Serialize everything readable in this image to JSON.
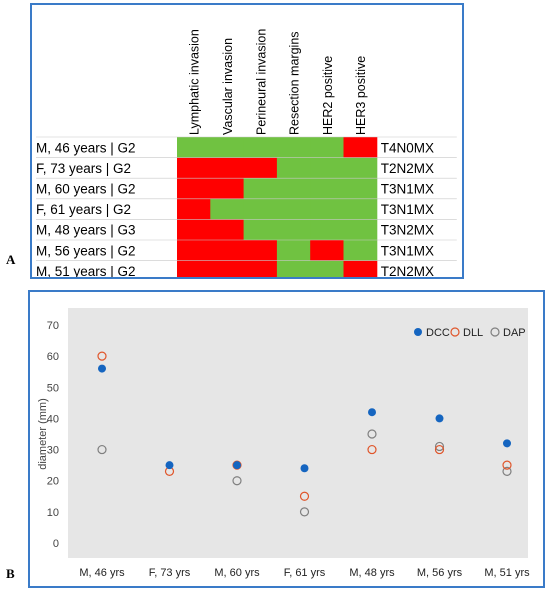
{
  "panel_labels": {
    "a": "A",
    "b": "B"
  },
  "colors": {
    "present": "#ff0000",
    "absent": "#70c241",
    "frame": "#3a7bc8",
    "plot_bg": "#e6e6e6",
    "dcc": "#1565c0",
    "dll": "#e0552a",
    "dap": "#7f7f7f"
  },
  "chart_data": [
    {
      "type": "heatmap",
      "columns": [
        "Lymphatic invasion",
        "Vascular invasion",
        "Perineural invasion",
        "Resection margins",
        "HER2 positive",
        "HER3 positive"
      ],
      "rows": [
        {
          "label": "M, 46 years | G2",
          "stage": "T4N0MX",
          "values": [
            0,
            0,
            0,
            0,
            0,
            1
          ]
        },
        {
          "label": "F, 73 years | G2",
          "stage": "T2N2MX",
          "values": [
            1,
            1,
            1,
            0,
            0,
            0
          ]
        },
        {
          "label": "M, 60 years | G2",
          "stage": "T3N1MX",
          "values": [
            1,
            1,
            0,
            0,
            0,
            0
          ]
        },
        {
          "label": "F, 61 years | G2",
          "stage": "T3N1MX",
          "values": [
            1,
            0,
            0,
            0,
            0,
            0
          ]
        },
        {
          "label": "M, 48 years | G3",
          "stage": "T3N2MX",
          "values": [
            1,
            1,
            0,
            0,
            0,
            0
          ]
        },
        {
          "label": "M, 56 years | G2",
          "stage": "T3N1MX",
          "values": [
            1,
            1,
            1,
            0,
            1,
            0
          ]
        },
        {
          "label": "M, 51 years | G2",
          "stage": "T2N2MX",
          "values": [
            1,
            1,
            1,
            0,
            0,
            1
          ]
        }
      ]
    },
    {
      "type": "scatter",
      "categories": [
        "M, 46 yrs",
        "F, 73 yrs",
        "M, 60 yrs",
        "F, 61 yrs",
        "M, 48 yrs",
        "M, 56 yrs",
        "M, 51 yrs"
      ],
      "series": [
        {
          "name": "DCC",
          "marker": "filled",
          "values": [
            56,
            25,
            25,
            24,
            42,
            40,
            32
          ]
        },
        {
          "name": "DLL",
          "marker": "open",
          "values": [
            60,
            23,
            25,
            15,
            30,
            30,
            25
          ]
        },
        {
          "name": "DAP",
          "marker": "open",
          "values": [
            30,
            null,
            20,
            10,
            35,
            31,
            23
          ]
        }
      ],
      "ylabel": "diameter (mm)",
      "ylim": [
        0,
        70
      ],
      "yticks": [
        0,
        10,
        20,
        30,
        40,
        50,
        60,
        70
      ],
      "grid": false,
      "legend": "top-right"
    }
  ]
}
